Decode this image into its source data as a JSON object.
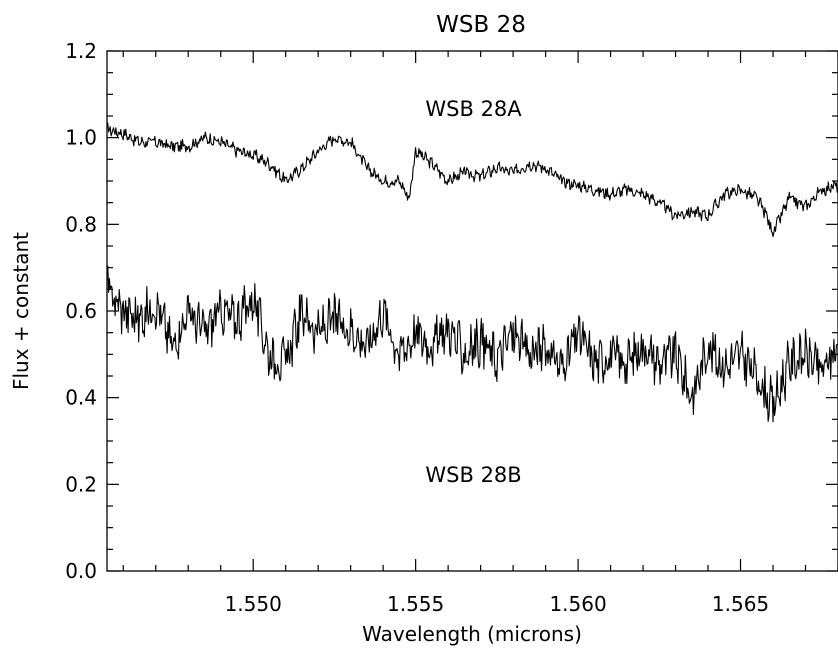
{
  "chart_data": {
    "type": "line",
    "title": "WSB 28",
    "xlabel": "Wavelength (microns)",
    "ylabel": "Flux + constant",
    "xlim": [
      1.5455,
      1.568
    ],
    "ylim": [
      0.0,
      1.2
    ],
    "x_ticks": [
      "1.550",
      "1.555",
      "1.560",
      "1.565"
    ],
    "y_ticks": [
      "0.0",
      "0.2",
      "0.4",
      "0.6",
      "0.8",
      "1.0",
      "1.2"
    ],
    "grid": false,
    "legend": "none",
    "annotations": [
      {
        "text": "WSB 28A",
        "x": 1.5553,
        "y": 1.05
      },
      {
        "text": "WSB 28B",
        "x": 1.5553,
        "y": 0.205
      }
    ],
    "series": [
      {
        "name": "WSB 28A",
        "x": [
          1.5455,
          1.546,
          1.5465,
          1.547,
          1.5475,
          1.548,
          1.5485,
          1.549,
          1.5495,
          1.55,
          1.5505,
          1.551,
          1.5515,
          1.552,
          1.5525,
          1.553,
          1.5535,
          1.554,
          1.5545,
          1.5548,
          1.555,
          1.5555,
          1.556,
          1.5565,
          1.557,
          1.5575,
          1.558,
          1.5585,
          1.559,
          1.5595,
          1.56,
          1.5605,
          1.561,
          1.5615,
          1.562,
          1.5625,
          1.563,
          1.5635,
          1.564,
          1.5645,
          1.565,
          1.5655,
          1.5658,
          1.566,
          1.5665,
          1.567,
          1.5675,
          1.568
        ],
        "y": [
          1.02,
          1.01,
          0.99,
          0.99,
          0.98,
          0.98,
          1.0,
          0.99,
          0.97,
          0.96,
          0.94,
          0.9,
          0.93,
          0.97,
          1.0,
          0.99,
          0.93,
          0.9,
          0.9,
          0.86,
          0.97,
          0.94,
          0.9,
          0.92,
          0.91,
          0.93,
          0.92,
          0.94,
          0.93,
          0.9,
          0.89,
          0.88,
          0.87,
          0.88,
          0.87,
          0.85,
          0.82,
          0.83,
          0.82,
          0.87,
          0.88,
          0.86,
          0.82,
          0.78,
          0.86,
          0.84,
          0.88,
          0.89
        ]
      },
      {
        "name": "WSB 28B",
        "x": [
          1.5455,
          1.546,
          1.5465,
          1.547,
          1.5475,
          1.548,
          1.5485,
          1.549,
          1.5495,
          1.55,
          1.5505,
          1.551,
          1.5515,
          1.552,
          1.5525,
          1.553,
          1.5535,
          1.554,
          1.5545,
          1.555,
          1.5555,
          1.556,
          1.5565,
          1.557,
          1.5575,
          1.558,
          1.5585,
          1.559,
          1.5595,
          1.56,
          1.5605,
          1.561,
          1.5615,
          1.562,
          1.5625,
          1.563,
          1.5635,
          1.564,
          1.5645,
          1.565,
          1.5655,
          1.566,
          1.5665,
          1.567,
          1.5675,
          1.568
        ],
        "y": [
          0.65,
          0.6,
          0.58,
          0.62,
          0.52,
          0.6,
          0.55,
          0.6,
          0.58,
          0.63,
          0.5,
          0.48,
          0.6,
          0.55,
          0.58,
          0.56,
          0.52,
          0.6,
          0.5,
          0.55,
          0.52,
          0.56,
          0.5,
          0.53,
          0.49,
          0.55,
          0.5,
          0.52,
          0.47,
          0.55,
          0.48,
          0.5,
          0.48,
          0.52,
          0.48,
          0.5,
          0.4,
          0.52,
          0.47,
          0.5,
          0.45,
          0.38,
          0.48,
          0.5,
          0.46,
          0.52
        ]
      }
    ]
  }
}
